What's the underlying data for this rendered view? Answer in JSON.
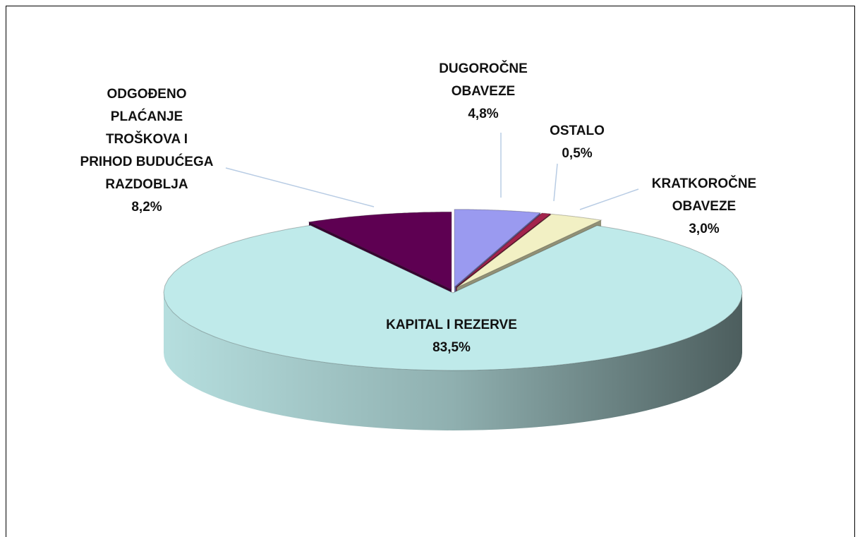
{
  "chart_data": {
    "type": "pie",
    "categories": [
      "DUGOROČNE OBAVEZE",
      "OSTALO",
      "KRATKOROČNE OBAVEZE",
      "KAPITAL I REZERVE",
      "ODGOĐENO PLAĆANJE TROŠKOVA I PRIHOD BUDUĆEGA RAZDOBLJA"
    ],
    "values": [
      4.8,
      0.5,
      3.0,
      83.5,
      8.2
    ],
    "value_labels": [
      "4,8%",
      "0,5%",
      "3,0%",
      "83,5%",
      "8,2%"
    ],
    "colors": [
      "#9a9af0",
      "#a3244c",
      "#f2f0c4",
      "#bfeaea",
      "#5e0052"
    ]
  }
}
